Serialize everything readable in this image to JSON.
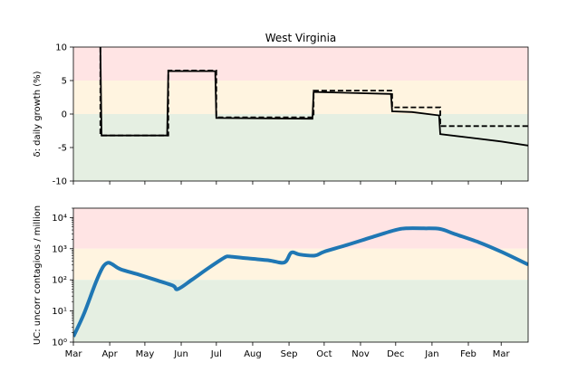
{
  "figure": {
    "title": "West Virginia"
  },
  "colors": {
    "red_zone": "#ffe4e4",
    "yellow_zone": "#fff4e0",
    "green_zone": "#e5efe2",
    "series_line": "#1f77b4",
    "growth_line": "#000000"
  },
  "chart_data": [
    {
      "type": "line",
      "title": "West Virginia",
      "ylabel": "δ: daily growth (%)",
      "xlim": [
        "2020-03-01",
        "2021-03-24"
      ],
      "ylim": [
        -10,
        10
      ],
      "yticks": [
        -10,
        -5,
        0,
        5,
        10
      ],
      "bands": [
        {
          "from": 5,
          "to": 10,
          "color": "red"
        },
        {
          "from": 0,
          "to": 5,
          "color": "yellow"
        },
        {
          "from": -10,
          "to": 0,
          "color": "green"
        }
      ],
      "series": [
        {
          "style": "dashed",
          "points": [
            [
              "2020-03-24",
              10
            ],
            [
              "2020-03-24",
              -3.2
            ],
            [
              "2020-05-21",
              -3.2
            ],
            [
              "2020-05-21",
              6.5
            ],
            [
              "2020-07-01",
              6.5
            ],
            [
              "2020-07-01",
              -0.5
            ],
            [
              "2020-09-22",
              -0.5
            ],
            [
              "2020-09-22",
              3.5
            ],
            [
              "2020-11-28",
              3.5
            ],
            [
              "2020-11-28",
              1.0
            ],
            [
              "2021-01-08",
              1.0
            ],
            [
              "2021-01-08",
              -1.8
            ],
            [
              "2021-03-24",
              -1.8
            ]
          ]
        },
        {
          "style": "solid",
          "points": [
            [
              "2020-03-24",
              10
            ],
            [
              "2020-03-25",
              -3.2
            ],
            [
              "2020-05-20",
              -3.2
            ],
            [
              "2020-05-21",
              6.4
            ],
            [
              "2020-06-30",
              6.4
            ],
            [
              "2020-07-01",
              -0.6
            ],
            [
              "2020-09-21",
              -0.7
            ],
            [
              "2020-09-22",
              3.3
            ],
            [
              "2020-11-27",
              3.0
            ],
            [
              "2020-11-28",
              0.4
            ],
            [
              "2020-12-15",
              0.3
            ],
            [
              "2021-01-07",
              -0.2
            ],
            [
              "2021-01-08",
              -3.0
            ],
            [
              "2021-02-01",
              -3.5
            ],
            [
              "2021-03-01",
              -4.1
            ],
            [
              "2021-03-24",
              -4.7
            ]
          ]
        }
      ]
    },
    {
      "type": "line",
      "ylabel": "UC: uncorr contagious / million",
      "yscale": "log",
      "xlim": [
        "2020-03-01",
        "2021-03-24"
      ],
      "ylim": [
        1,
        20000
      ],
      "yticks": [
        "10⁰",
        "10¹",
        "10²",
        "10³",
        "10⁴"
      ],
      "ytick_values": [
        1,
        10,
        100,
        1000,
        10000
      ],
      "bands": [
        {
          "from": 1000,
          "to": 20000,
          "color": "red"
        },
        {
          "from": 100,
          "to": 1000,
          "color": "yellow"
        },
        {
          "from": 1,
          "to": 100,
          "color": "green"
        }
      ],
      "x": [
        "2020-03-01",
        "2020-03-10",
        "2020-03-20",
        "2020-03-26",
        "2020-03-30",
        "2020-04-03",
        "2020-04-10",
        "2020-04-25",
        "2020-05-10",
        "2020-05-25",
        "2020-05-29",
        "2020-06-10",
        "2020-06-25",
        "2020-07-08",
        "2020-07-12",
        "2020-07-25",
        "2020-08-15",
        "2020-08-28",
        "2020-09-03",
        "2020-09-10",
        "2020-09-23",
        "2020-10-01",
        "2020-10-20",
        "2020-11-10",
        "2020-12-01",
        "2020-12-10",
        "2020-12-25",
        "2021-01-08",
        "2021-01-20",
        "2021-02-10",
        "2021-03-01",
        "2021-03-24"
      ],
      "values": [
        1.5,
        8,
        80,
        250,
        350,
        320,
        220,
        150,
        100,
        65,
        50,
        100,
        250,
        520,
        560,
        500,
        420,
        360,
        750,
        650,
        600,
        800,
        1300,
        2300,
        4000,
        4500,
        4500,
        4300,
        3000,
        1600,
        800,
        310
      ]
    }
  ],
  "xticks": [
    "Mar",
    "Apr",
    "May",
    "Jun",
    "Jul",
    "Aug",
    "Sep",
    "Oct",
    "Nov",
    "Dec",
    "Jan",
    "Feb",
    "Mar"
  ],
  "xtick_dates": [
    "2020-03-01",
    "2020-04-01",
    "2020-05-01",
    "2020-06-01",
    "2020-07-01",
    "2020-08-01",
    "2020-09-01",
    "2020-10-01",
    "2020-11-01",
    "2020-12-01",
    "2021-01-01",
    "2021-02-01",
    "2021-03-01"
  ]
}
